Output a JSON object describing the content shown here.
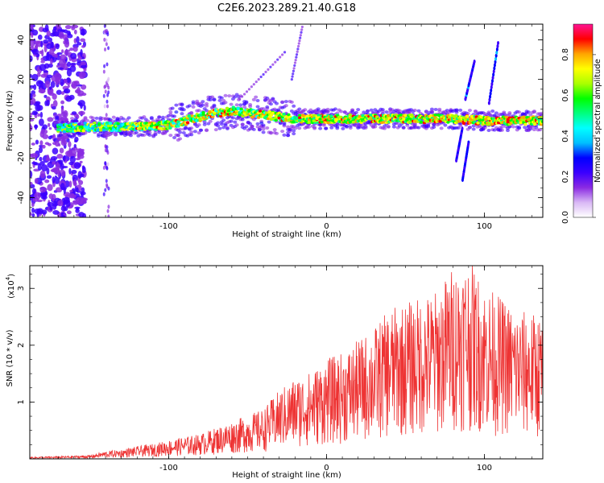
{
  "title": "C2E6.2023.289.21.40.G18",
  "chart_data": [
    {
      "type": "heatmap",
      "xlabel": "Height of straight line (km)",
      "ylabel": "Frequency (Hz)",
      "xlim": [
        -188,
        137
      ],
      "ylim": [
        -50,
        48
      ],
      "xticks": [
        -100,
        0,
        100
      ],
      "yticks": [
        -40,
        -20,
        0,
        20,
        40
      ],
      "colorbar": {
        "label": "Normalized spectral amplitude",
        "range": [
          0,
          0.95
        ],
        "ticks": [
          0.0,
          0.2,
          0.4,
          0.6,
          0.8
        ],
        "colors": [
          "#ffffff",
          "#d9b8f5",
          "#8a2be2",
          "#3b00ff",
          "#0000ff",
          "#00bfff",
          "#00ffff",
          "#00ff80",
          "#00ff00",
          "#aaff00",
          "#ffff00",
          "#ffa500",
          "#ff0000",
          "#ff1493"
        ]
      },
      "ridge": {
        "description_points": [
          [
            -170,
            -5
          ],
          [
            -150,
            -4
          ],
          [
            -130,
            -4
          ],
          [
            -110,
            -4
          ],
          [
            -100,
            -3
          ],
          [
            -90,
            -1
          ],
          [
            -80,
            1
          ],
          [
            -70,
            3
          ],
          [
            -60,
            4
          ],
          [
            -50,
            3
          ],
          [
            -40,
            2
          ],
          [
            -30,
            1
          ],
          [
            -20,
            0
          ],
          [
            0,
            0
          ],
          [
            20,
            0
          ],
          [
            50,
            0
          ],
          [
            80,
            0
          ],
          [
            100,
            -1
          ],
          [
            120,
            -1
          ],
          [
            137,
            -1
          ]
        ]
      }
    },
    {
      "type": "line",
      "xlabel": "Height of straight line (km)",
      "ylabel": "SNR (10 * v/v)",
      "yscale_label": "(x10",
      "yscale_exp": "4",
      "yscale_close": ")",
      "xlim": [
        -188,
        137
      ],
      "ylim": [
        0,
        3.4
      ],
      "xticks": [
        -100,
        0,
        100
      ],
      "yticks": [
        1,
        2,
        3
      ],
      "color": "#ee3333",
      "envelope": [
        [
          -188,
          0.03
        ],
        [
          -170,
          0.04
        ],
        [
          -150,
          0.06
        ],
        [
          -140,
          0.12
        ],
        [
          -130,
          0.15
        ],
        [
          -120,
          0.2
        ],
        [
          -110,
          0.24
        ],
        [
          -100,
          0.3
        ],
        [
          -90,
          0.35
        ],
        [
          -80,
          0.4
        ],
        [
          -70,
          0.5
        ],
        [
          -60,
          0.6
        ],
        [
          -50,
          0.7
        ],
        [
          -40,
          0.8
        ],
        [
          -30,
          1.1
        ],
        [
          -20,
          1.3
        ],
        [
          -10,
          1.4
        ],
        [
          0,
          1.6
        ],
        [
          10,
          1.7
        ],
        [
          20,
          1.9
        ],
        [
          30,
          2.1
        ],
        [
          40,
          2.4
        ],
        [
          50,
          2.5
        ],
        [
          60,
          2.6
        ],
        [
          70,
          2.7
        ],
        [
          80,
          3.1
        ],
        [
          90,
          3.2
        ],
        [
          100,
          2.8
        ],
        [
          110,
          2.6
        ],
        [
          120,
          2.4
        ],
        [
          137,
          2.3
        ]
      ]
    }
  ]
}
